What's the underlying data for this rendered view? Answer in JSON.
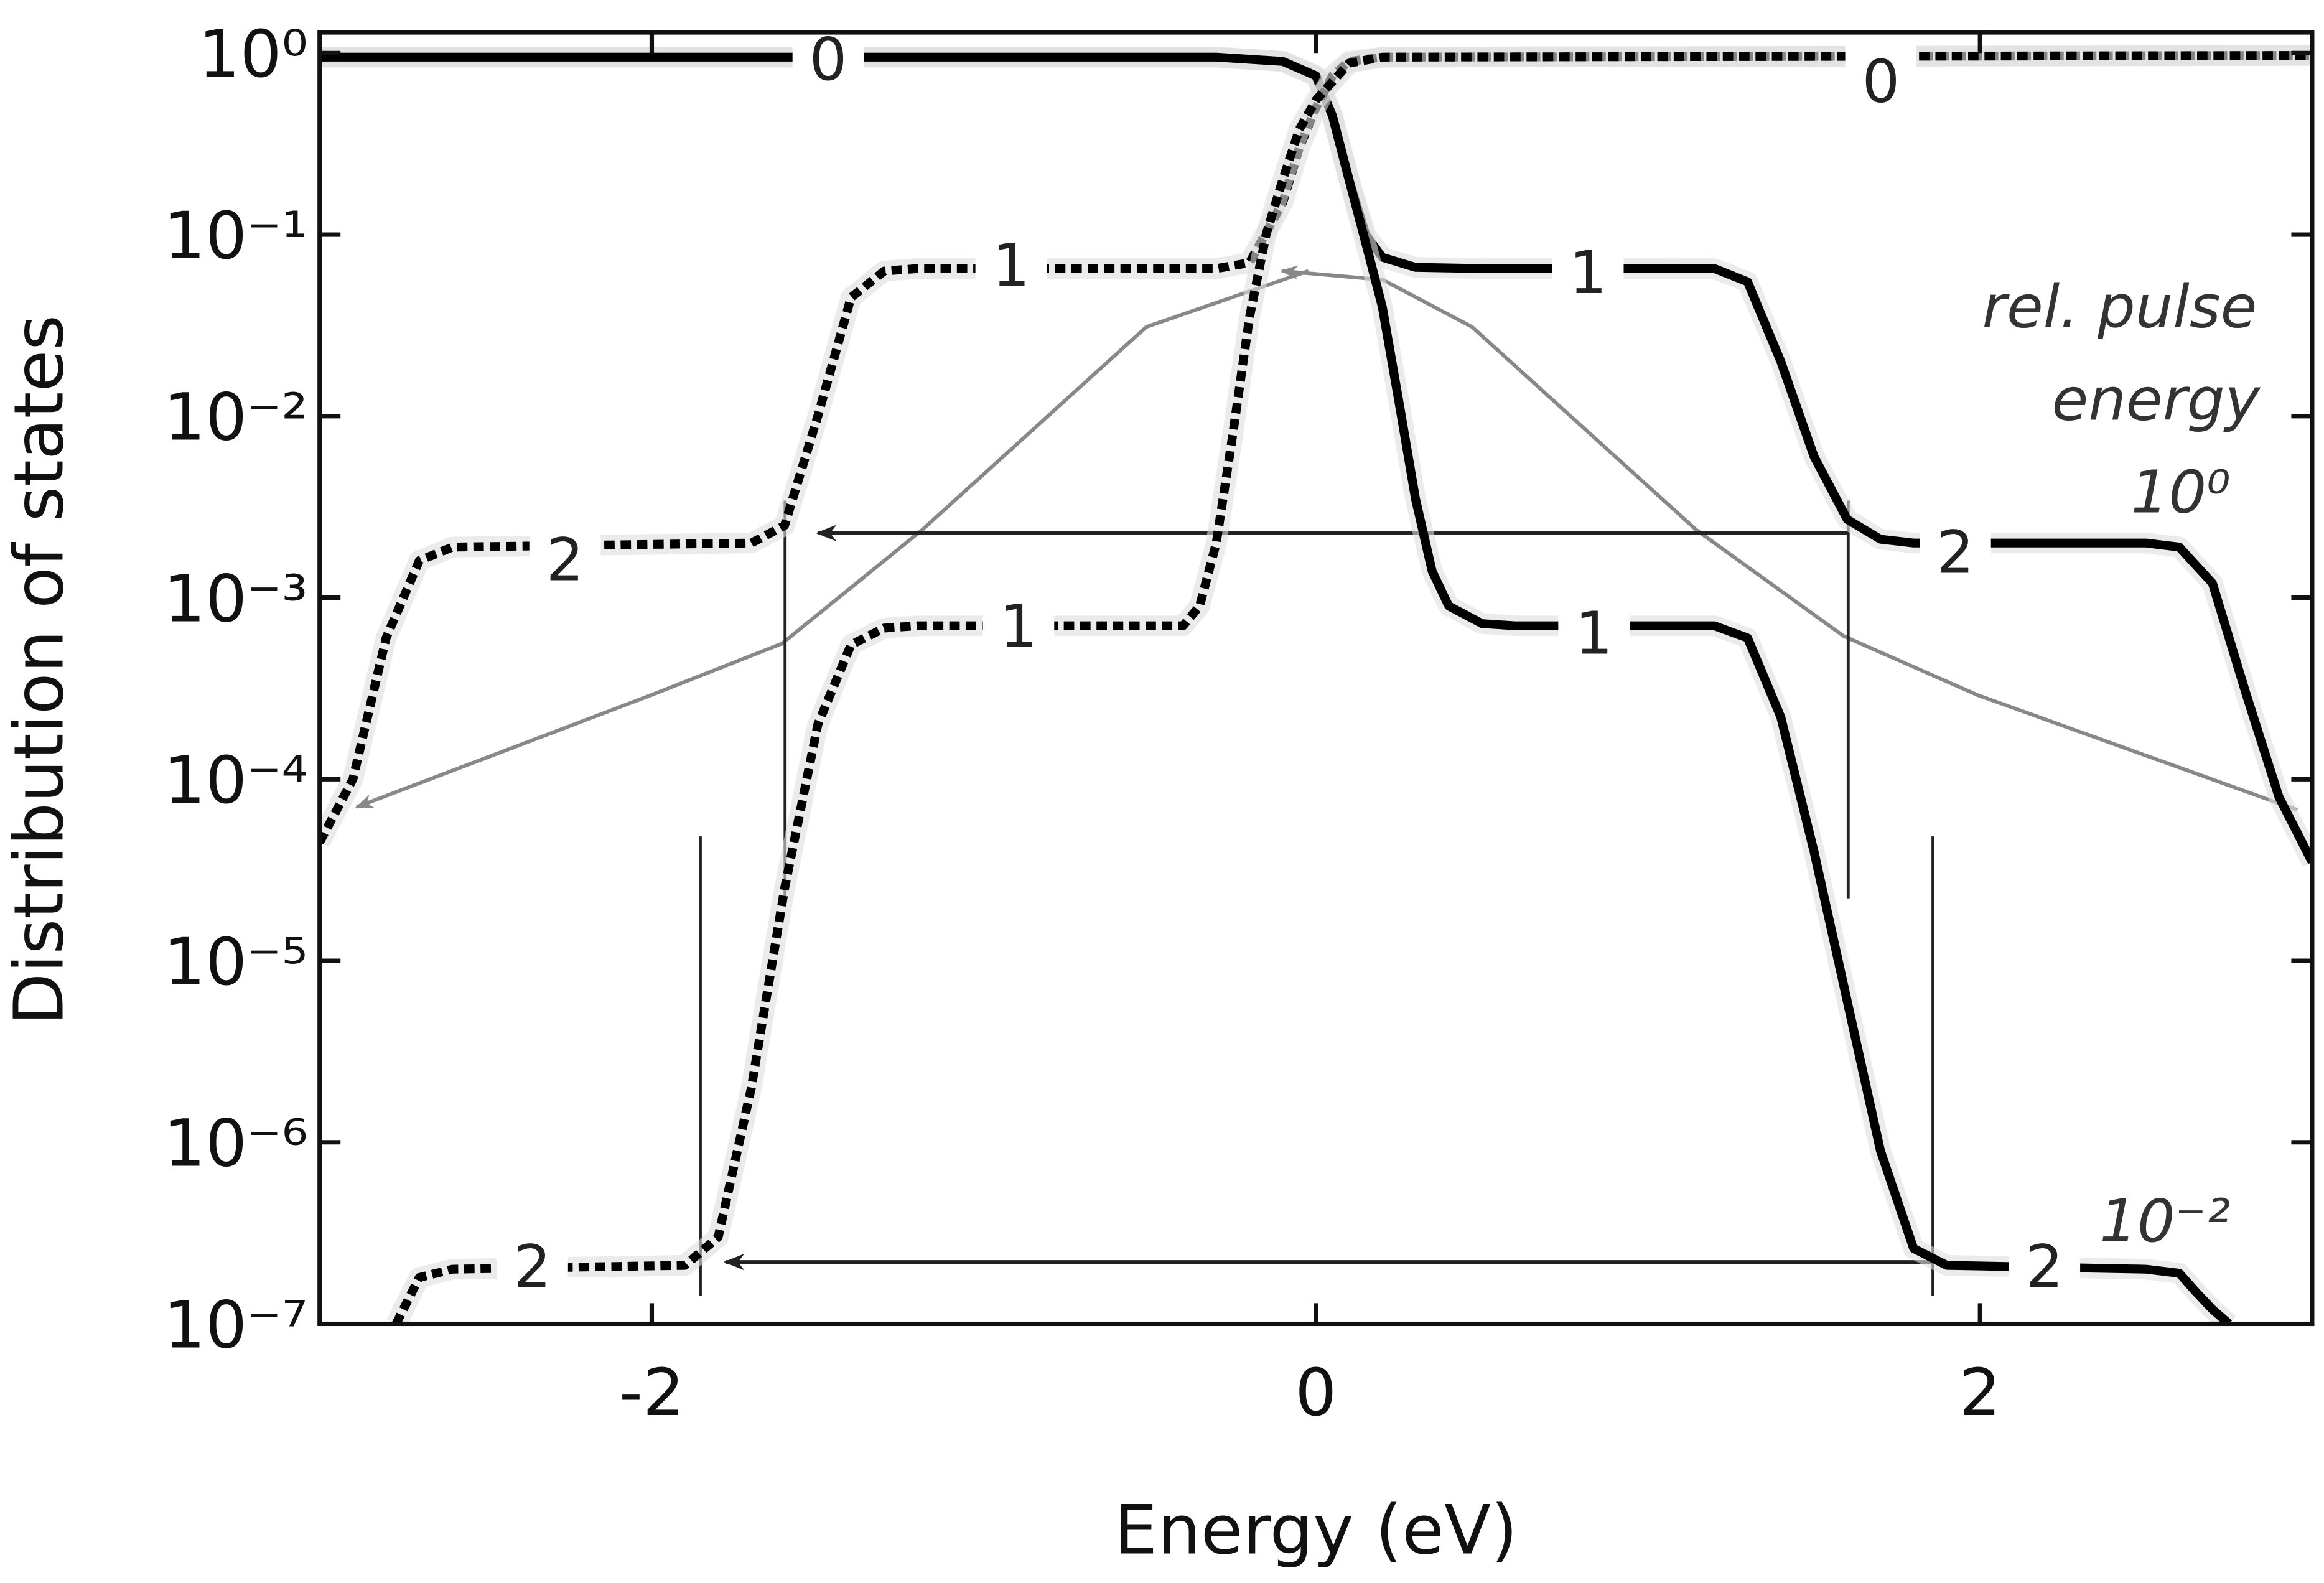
{
  "chart_data": {
    "type": "line",
    "xlabel": "Energy (eV)",
    "ylabel": "Distribution of states",
    "xlim": [
      -3,
      3
    ],
    "xticks": [
      -2,
      0,
      2
    ],
    "ylim": [
      1e-07,
      1.3
    ],
    "yscale": "log",
    "yticks": [
      {
        "value": 1,
        "label": "10⁰"
      },
      {
        "value": 0.1,
        "label": "10⁻¹"
      },
      {
        "value": 0.01,
        "label": "10⁻²"
      },
      {
        "value": 0.001,
        "label": "10⁻³"
      },
      {
        "value": 0.0001,
        "label": "10⁻⁴"
      },
      {
        "value": 1e-05,
        "label": "10⁻⁵"
      },
      {
        "value": 1e-06,
        "label": "10⁻⁶"
      },
      {
        "value": 1e-07,
        "label": "10⁻⁷"
      }
    ],
    "series": [
      {
        "style": "solid",
        "color": "#000000",
        "x": [
          -3,
          -0.3,
          -0.1,
          0,
          0.05,
          0.1,
          0.15,
          0.2,
          0.3,
          0.5,
          1.2,
          1.3,
          1.4,
          1.5,
          1.6,
          1.7,
          1.8,
          2.5,
          2.6,
          2.7,
          2.8,
          2.9,
          3.0
        ],
        "values": [
          0.95,
          0.95,
          0.9,
          0.75,
          0.45,
          0.2,
          0.1,
          0.075,
          0.066,
          0.065,
          0.065,
          0.055,
          0.02,
          0.006,
          0.0027,
          0.0021,
          0.002,
          0.002,
          0.0019,
          0.0012,
          0.0003,
          8e-05,
          3.5e-05
        ]
      },
      {
        "style": "solid",
        "color": "#000000",
        "x": [
          -3,
          -0.3,
          -0.1,
          0,
          0.05,
          0.1,
          0.15,
          0.2,
          0.25,
          0.3,
          0.35,
          0.4,
          0.5,
          0.6,
          1.2,
          1.3,
          1.4,
          1.5,
          1.6,
          1.7,
          1.8,
          1.9,
          2.5,
          2.6,
          2.65,
          2.7,
          2.75
        ],
        "values": [
          0.95,
          0.95,
          0.9,
          0.75,
          0.45,
          0.2,
          0.09,
          0.04,
          0.012,
          0.0035,
          0.0014,
          0.0009,
          0.00072,
          0.0007,
          0.0007,
          0.0006,
          0.00022,
          4e-05,
          6e-06,
          9e-07,
          2.6e-07,
          2.1e-07,
          2e-07,
          1.9e-07,
          1.5e-07,
          1.2e-07,
          1e-07
        ]
      },
      {
        "style": "dotted",
        "color": "#000000",
        "x": [
          -3,
          -2.9,
          -2.8,
          -2.7,
          -2.6,
          -1.7,
          -1.6,
          -1.5,
          -1.4,
          -1.3,
          -1.2,
          -0.3,
          -0.2,
          -0.1,
          -0.05,
          0,
          0.05,
          0.1,
          0.2,
          3
        ],
        "values": [
          4.5e-05,
          0.0001,
          0.0006,
          0.0016,
          0.0019,
          0.002,
          0.0025,
          0.01,
          0.045,
          0.063,
          0.065,
          0.065,
          0.07,
          0.15,
          0.3,
          0.5,
          0.75,
          0.9,
          0.95,
          0.97
        ]
      },
      {
        "style": "dotted",
        "color": "#000000",
        "x": [
          -2.77,
          -2.7,
          -2.6,
          -1.9,
          -1.8,
          -1.7,
          -1.6,
          -1.5,
          -1.4,
          -1.3,
          -1.2,
          -0.4,
          -0.35,
          -0.3,
          -0.25,
          -0.2,
          -0.15,
          -0.1,
          -0.05,
          0,
          0.1,
          0.2,
          3
        ],
        "values": [
          1e-07,
          1.8e-07,
          2e-07,
          2.1e-07,
          3e-07,
          2e-06,
          2.5e-05,
          0.0002,
          0.00055,
          0.00068,
          0.0007,
          0.0007,
          0.0009,
          0.002,
          0.008,
          0.035,
          0.1,
          0.2,
          0.38,
          0.55,
          0.88,
          0.95,
          0.97
        ]
      }
    ],
    "plateau_labels": [
      "0",
      "0",
      "1",
      "1",
      "1",
      "1",
      "2",
      "2",
      "2",
      "2"
    ],
    "annotations": [
      "rel. pulse",
      "energy",
      "10⁰",
      "10⁻²"
    ]
  }
}
